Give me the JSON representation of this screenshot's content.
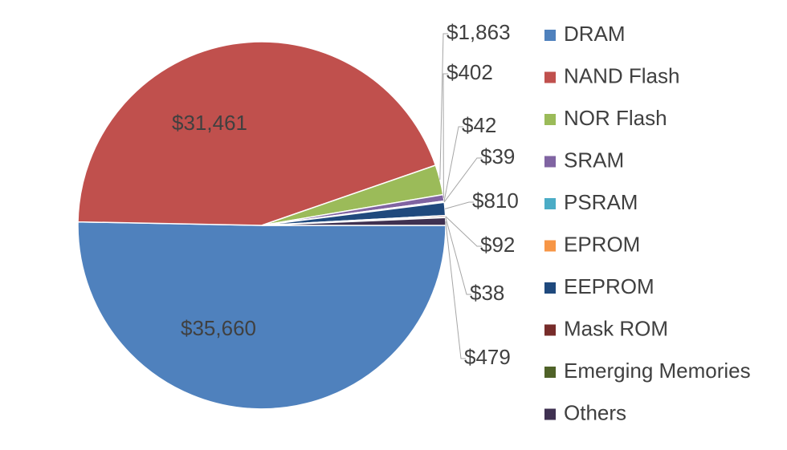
{
  "chart_data": {
    "type": "pie",
    "title": "",
    "legend_position": "right",
    "labels_format": "currency",
    "series": [
      {
        "name": "DRAM",
        "value": 35660,
        "label": "$35,660",
        "color": "#4F81BD"
      },
      {
        "name": "NAND Flash",
        "value": 31461,
        "label": "$31,461",
        "color": "#C0504D"
      },
      {
        "name": "NOR Flash",
        "value": 1863,
        "label": "$1,863",
        "color": "#9BBB59"
      },
      {
        "name": "SRAM",
        "value": 402,
        "label": "$402",
        "color": "#8064A2"
      },
      {
        "name": "PSRAM",
        "value": 42,
        "label": "$42",
        "color": "#4BACC6"
      },
      {
        "name": "EPROM",
        "value": 39,
        "label": "$39",
        "color": "#F79646"
      },
      {
        "name": "EEPROM",
        "value": 810,
        "label": "$810",
        "color": "#1F497D"
      },
      {
        "name": "Mask ROM",
        "value": 92,
        "label": "$92",
        "color": "#772C2A"
      },
      {
        "name": "Emerging Memories",
        "value": 38,
        "label": "$38",
        "color": "#4F6228"
      },
      {
        "name": "Others",
        "value": 479,
        "label": "$479",
        "color": "#3F3151"
      }
    ]
  }
}
